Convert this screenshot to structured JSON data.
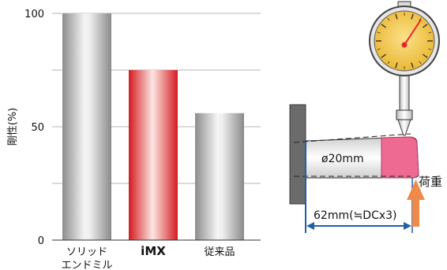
{
  "chart_data": {
    "type": "bar",
    "categories": [
      "ソリッド\nエンドミル",
      "iMX",
      "従来品"
    ],
    "values": [
      100,
      75,
      56
    ],
    "ylabel": "剛性(%)",
    "ylim": [
      0,
      100
    ],
    "yticks": [
      0,
      50,
      100
    ],
    "grid": true,
    "bar_colors": [
      "#9a9a9a",
      "#e8232a",
      "#9a9a9a"
    ]
  },
  "diagram": {
    "diameter_label": "ø20mm",
    "overhang_label": "62mm(≒DCx3)",
    "load_label": "荷重"
  },
  "colors": {
    "highlight": "#e8232a",
    "insert_pink": "#ee6a92",
    "dimension_blue": "#1f5fa8",
    "arrow_orange": "#f08a4b",
    "gauge_face": "#f2c23a"
  }
}
